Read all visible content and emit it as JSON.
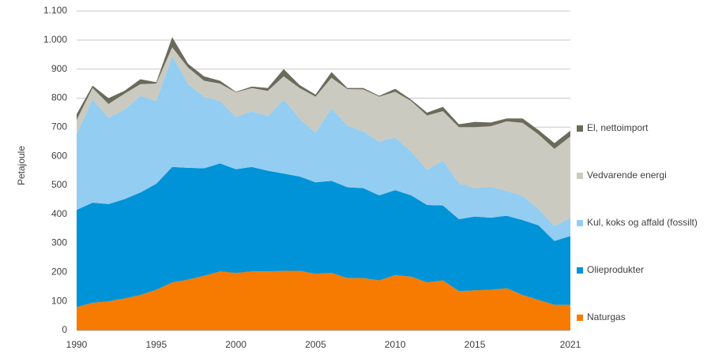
{
  "chart_data": {
    "type": "stacked-area",
    "y_label": "Petajoule",
    "x": [
      1990,
      1991,
      1992,
      1993,
      1994,
      1995,
      1996,
      1997,
      1998,
      1999,
      2000,
      2001,
      2002,
      2003,
      2004,
      2005,
      2006,
      2007,
      2008,
      2009,
      2010,
      2011,
      2012,
      2013,
      2014,
      2015,
      2016,
      2017,
      2018,
      2019,
      2020,
      2021
    ],
    "xlim": [
      1990,
      2021
    ],
    "xticks": [
      1990,
      1995,
      2000,
      2005,
      2010,
      2015,
      2021
    ],
    "ylim": [
      0,
      1100
    ],
    "yticks": [
      0,
      100,
      200,
      300,
      400,
      500,
      600,
      700,
      800,
      900,
      {
        "value": 1000,
        "label": "1.000"
      },
      {
        "value": 1100,
        "label": "1.100"
      }
    ],
    "grid": true,
    "series": [
      {
        "name": "Naturgas",
        "color": "#f77b00",
        "values": [
          80,
          95,
          100,
          110,
          122,
          140,
          165,
          175,
          188,
          203,
          198,
          203,
          203,
          205,
          205,
          195,
          198,
          180,
          180,
          172,
          190,
          185,
          165,
          172,
          135,
          138,
          140,
          145,
          122,
          105,
          88,
          88
        ]
      },
      {
        "name": "Olieprodukter",
        "color": "#0093d8",
        "values": [
          335,
          345,
          335,
          342,
          353,
          365,
          398,
          385,
          370,
          372,
          357,
          360,
          347,
          335,
          325,
          315,
          317,
          313,
          310,
          293,
          293,
          280,
          267,
          258,
          248,
          254,
          248,
          250,
          258,
          257,
          220,
          237
        ]
      },
      {
        "name": "Kul, koks og affald (fossilt)",
        "color": "#93cdf1",
        "values": [
          260,
          355,
          298,
          308,
          333,
          285,
          382,
          288,
          247,
          215,
          180,
          192,
          188,
          255,
          200,
          170,
          250,
          212,
          195,
          185,
          182,
          150,
          121,
          155,
          124,
          98,
          107,
          85,
          83,
          56,
          52,
          63
        ]
      },
      {
        "name": "Vedvarende energi",
        "color": "#cbcac0",
        "values": [
          50,
          40,
          47,
          55,
          40,
          60,
          30,
          57,
          55,
          60,
          85,
          80,
          87,
          80,
          105,
          125,
          105,
          126,
          145,
          155,
          157,
          175,
          187,
          170,
          193,
          210,
          208,
          240,
          252,
          257,
          265,
          280
        ]
      },
      {
        "name": "El, nettoimport",
        "color": "#6b6b5b",
        "values": [
          20,
          8,
          20,
          10,
          17,
          5,
          35,
          13,
          15,
          10,
          2,
          5,
          10,
          25,
          10,
          7,
          20,
          4,
          5,
          3,
          10,
          5,
          10,
          15,
          10,
          18,
          13,
          10,
          15,
          15,
          20,
          20
        ]
      }
    ]
  }
}
